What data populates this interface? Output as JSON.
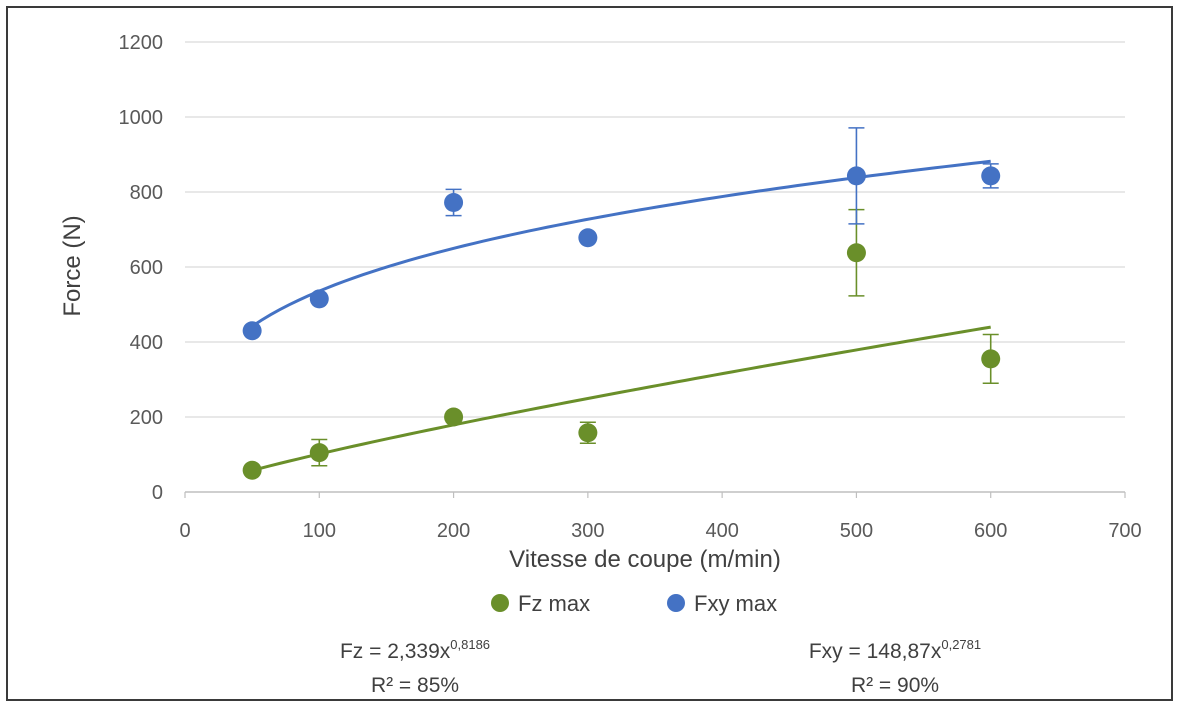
{
  "chart_data": {
    "type": "scatter",
    "xlabel": "Vitesse de coupe (m/min)",
    "ylabel": "Force (N)",
    "xlim": [
      0,
      700
    ],
    "ylim": [
      0,
      1200
    ],
    "xticks": [
      0,
      100,
      200,
      300,
      400,
      500,
      600,
      700
    ],
    "yticks": [
      0,
      200,
      400,
      600,
      800,
      1000,
      1200
    ],
    "grid": "horizontal",
    "legend_position": "bottom",
    "series": [
      {
        "name": "Fz max",
        "color": "#6a8f2a",
        "x": [
          50,
          100,
          200,
          300,
          500,
          600
        ],
        "y": [
          58,
          105,
          200,
          158,
          638,
          355
        ],
        "err": [
          5,
          35,
          12,
          28,
          115,
          65
        ],
        "trend": {
          "type": "power",
          "a": 2.339,
          "b": 0.8186
        }
      },
      {
        "name": "Fxy max",
        "color": "#4472c4",
        "x": [
          50,
          100,
          200,
          300,
          500,
          600
        ],
        "y": [
          430,
          515,
          772,
          678,
          843,
          843
        ],
        "err": [
          5,
          10,
          35,
          8,
          128,
          32
        ],
        "trend": {
          "type": "power",
          "a": 148.87,
          "b": 0.2781
        }
      }
    ],
    "annotations": [
      {
        "lhs": "Fz = 2,339x",
        "exponent": "0,8186",
        "r2": "R² = 85%"
      },
      {
        "lhs": "Fxy = 148,87x",
        "exponent": "0,2781",
        "r2": "R² = 90%"
      }
    ]
  }
}
